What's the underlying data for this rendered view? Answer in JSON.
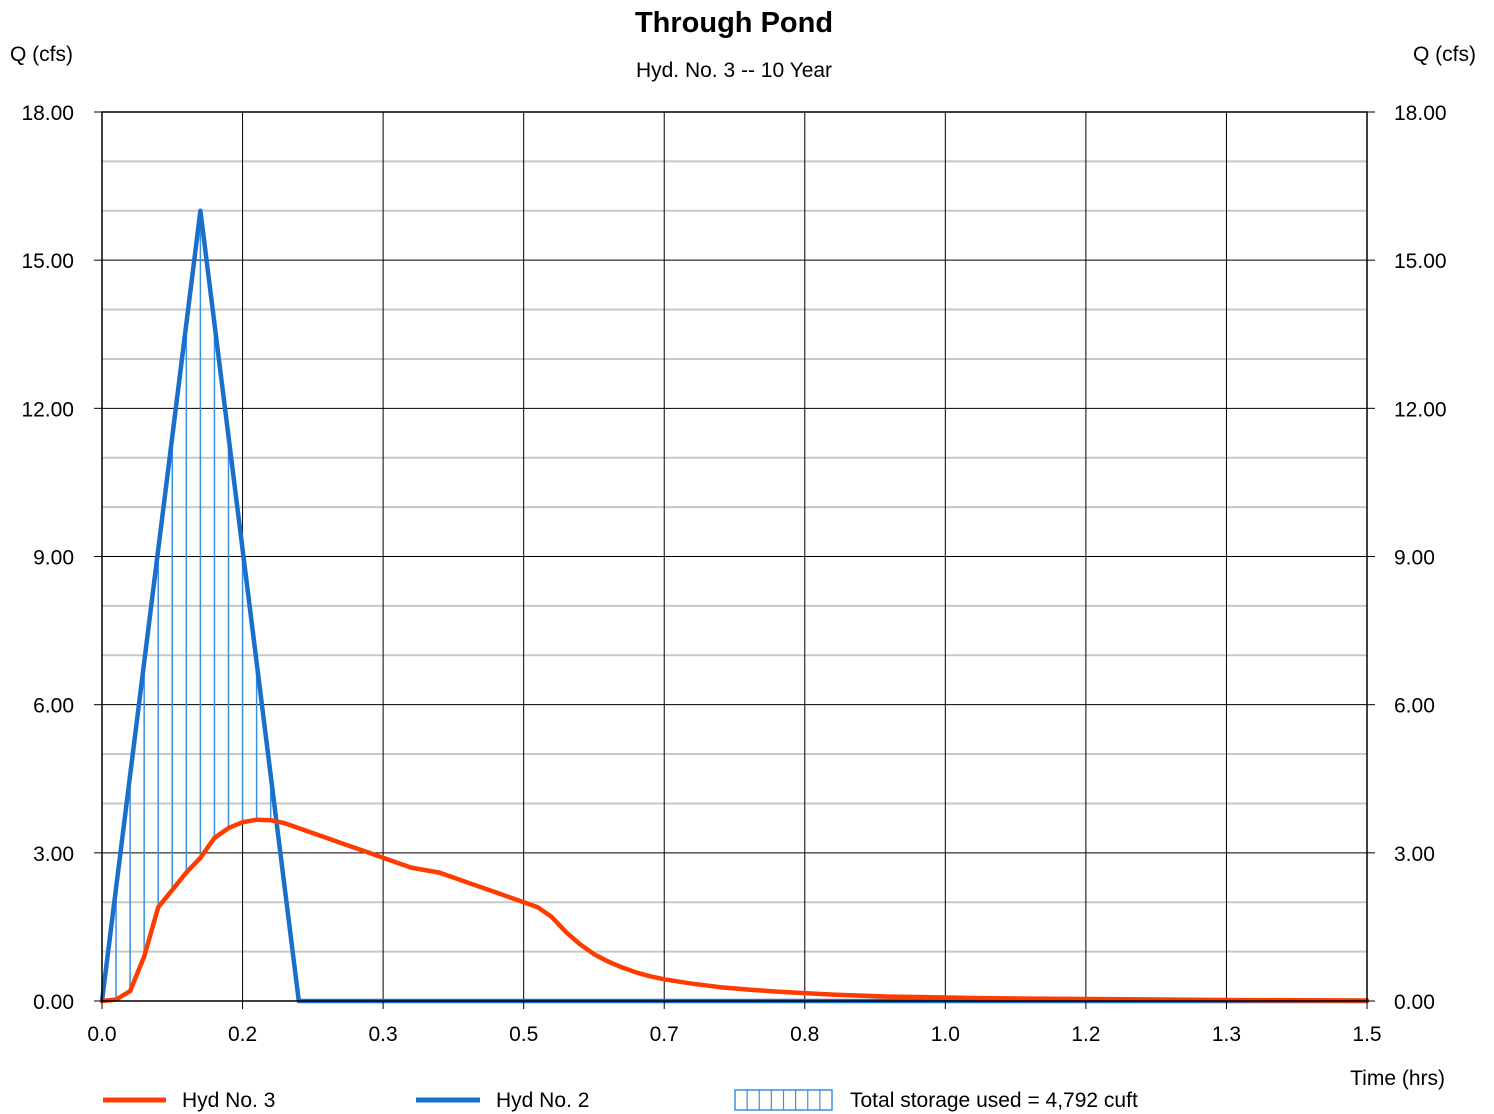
{
  "chart_data": {
    "type": "line",
    "title": "Through Pond",
    "subtitle": "Hyd. No. 3 -- 10 Year",
    "ylabel_left": "Q (cfs)",
    "ylabel_right": "Q (cfs)",
    "xlabel": "Time (hrs)",
    "xlim": [
      0,
      0.9
    ],
    "ylim": [
      0,
      18
    ],
    "x_ticks": [
      0.0,
      0.1,
      0.2,
      0.3,
      0.4,
      0.5,
      0.6,
      0.7,
      0.8,
      0.9
    ],
    "x_tick_labels": [
      "0.0",
      "0.2",
      "0.3",
      "0.5",
      "0.7",
      "0.8",
      "1.0",
      "1.2",
      "1.3",
      "1.5"
    ],
    "y_ticks": [
      0,
      3,
      6,
      9,
      12,
      15,
      18
    ],
    "y_tick_labels": [
      "0.00",
      "3.00",
      "6.00",
      "9.00",
      "12.00",
      "15.00",
      "18.00"
    ],
    "grid": true,
    "legend_position": "bottom",
    "series": [
      {
        "name": "Hyd No. 3",
        "color": "#ff3c00",
        "x": [
          0.0,
          0.01,
          0.02,
          0.03,
          0.04,
          0.05,
          0.06,
          0.07,
          0.08,
          0.09,
          0.1,
          0.11,
          0.12,
          0.13,
          0.14,
          0.15,
          0.16,
          0.17,
          0.18,
          0.19,
          0.2,
          0.21,
          0.22,
          0.23,
          0.24,
          0.25,
          0.26,
          0.27,
          0.28,
          0.29,
          0.3,
          0.31,
          0.32,
          0.33,
          0.34,
          0.35,
          0.36,
          0.37,
          0.38,
          0.39,
          0.4,
          0.42,
          0.44,
          0.46,
          0.48,
          0.5,
          0.52,
          0.54,
          0.56,
          0.58,
          0.6,
          0.62,
          0.65,
          0.7,
          0.75,
          0.8,
          0.85,
          0.9
        ],
        "values": [
          0.0,
          0.03,
          0.2,
          0.9,
          1.9,
          2.25,
          2.6,
          2.9,
          3.3,
          3.5,
          3.62,
          3.67,
          3.66,
          3.6,
          3.5,
          3.4,
          3.3,
          3.2,
          3.1,
          3.0,
          2.9,
          2.8,
          2.7,
          2.65,
          2.6,
          2.5,
          2.4,
          2.3,
          2.2,
          2.1,
          2.0,
          1.9,
          1.7,
          1.4,
          1.15,
          0.95,
          0.8,
          0.68,
          0.58,
          0.5,
          0.44,
          0.35,
          0.28,
          0.23,
          0.19,
          0.16,
          0.13,
          0.11,
          0.09,
          0.08,
          0.07,
          0.06,
          0.05,
          0.04,
          0.03,
          0.02,
          0.015,
          0.01
        ]
      },
      {
        "name": "Hyd No. 2",
        "color": "#1a6fcc",
        "x": [
          0.0,
          0.07,
          0.14,
          0.9
        ],
        "values": [
          0.0,
          16.0,
          0.0,
          0.0
        ]
      }
    ],
    "storage": {
      "label": "Total storage used = 4,792 cuft",
      "color": "#3d8fe0"
    }
  }
}
